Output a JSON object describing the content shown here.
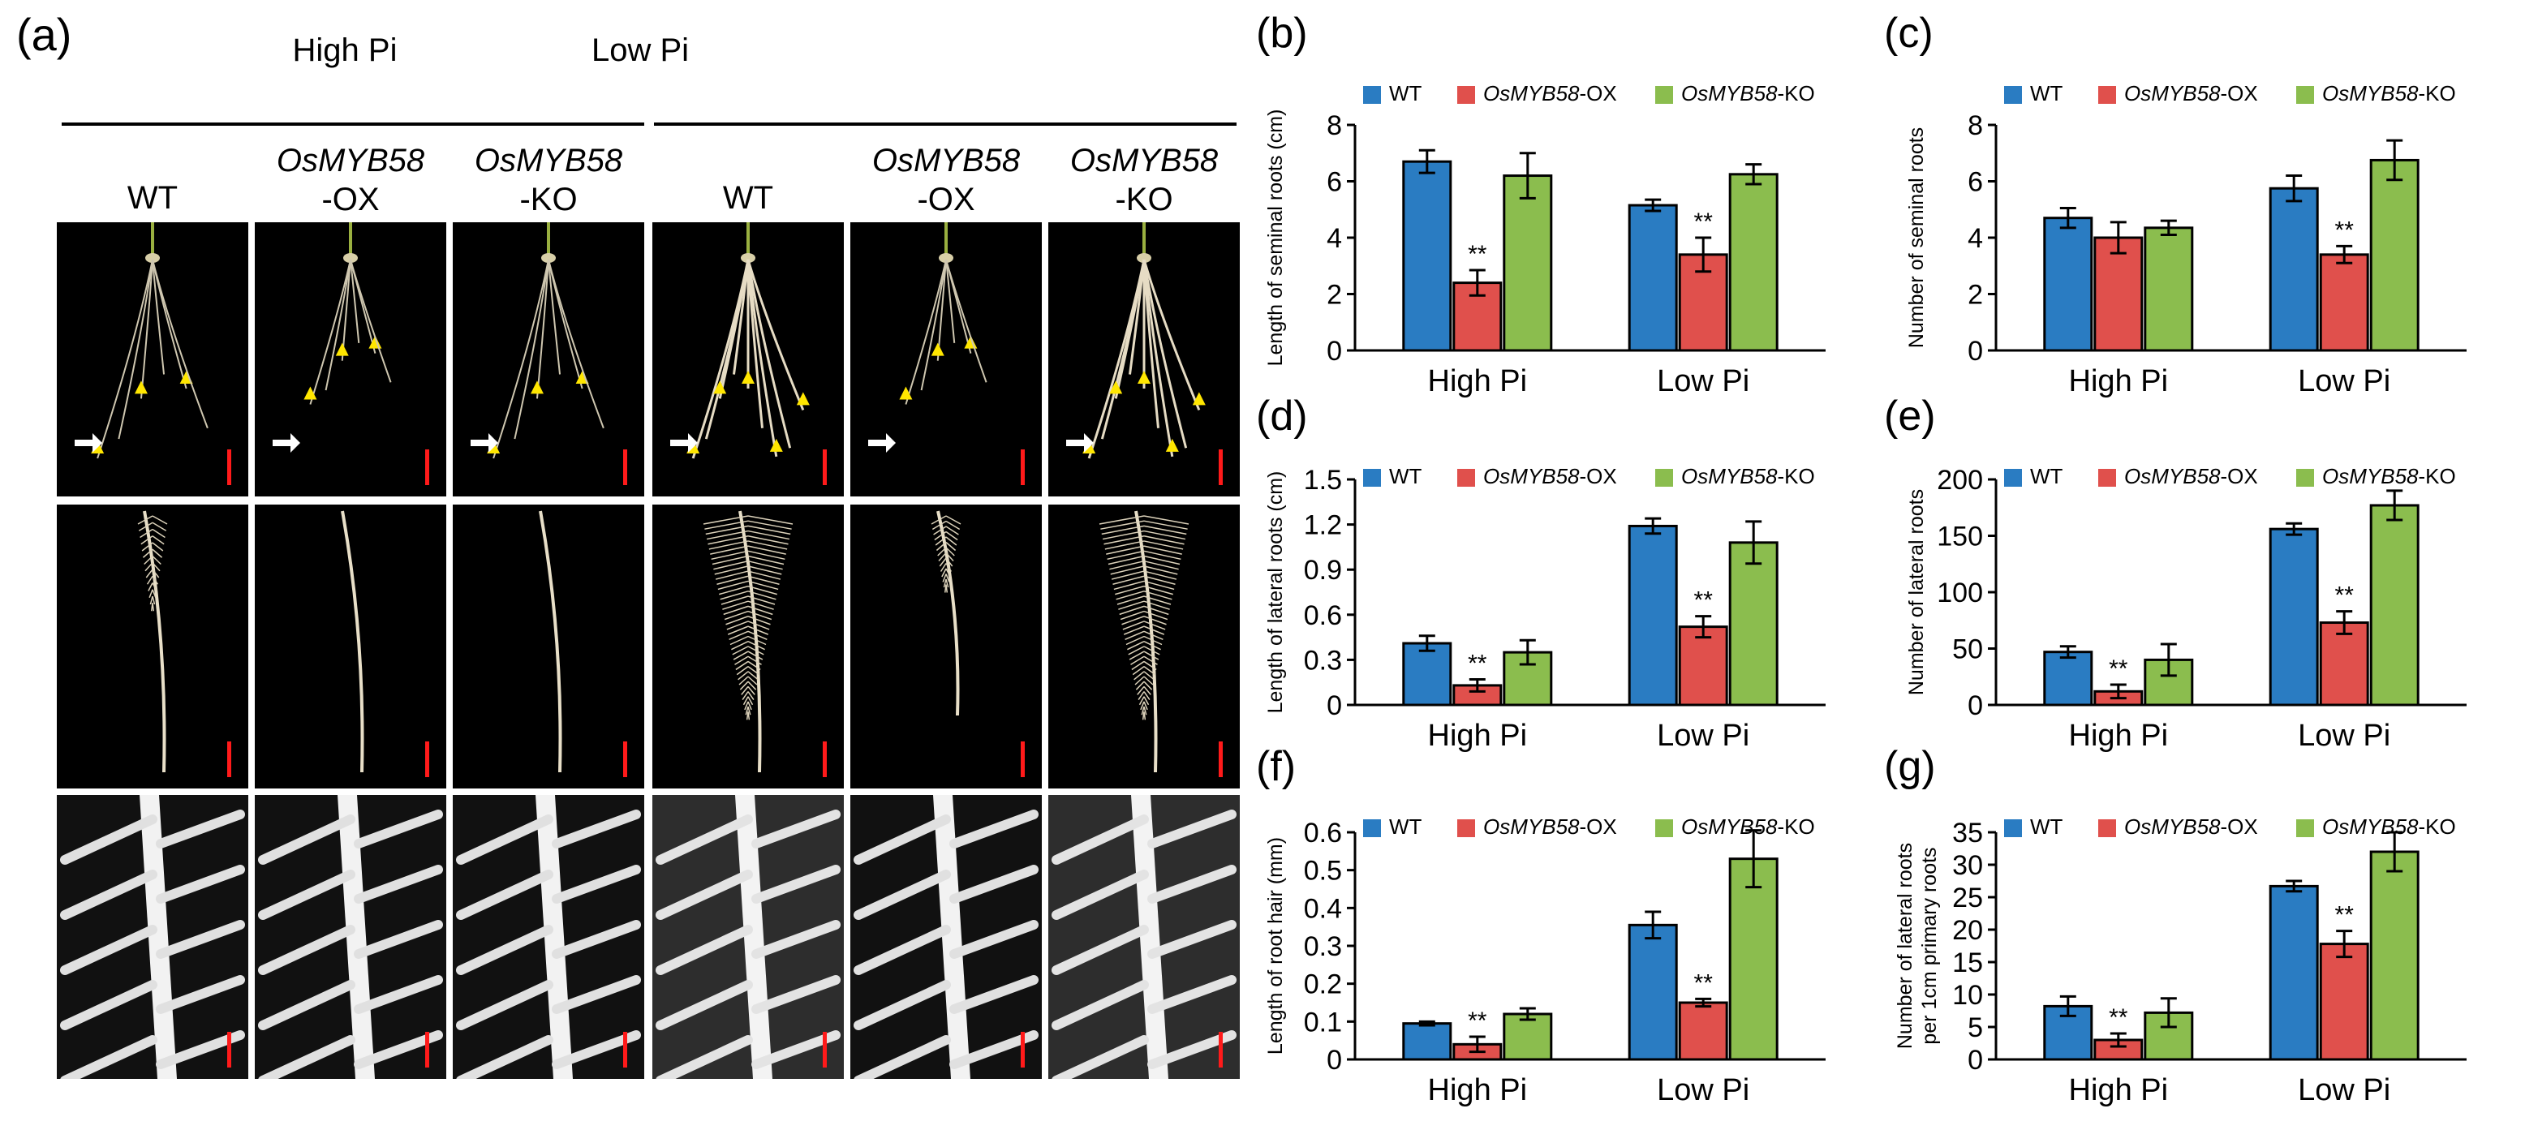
{
  "panel_a": {
    "letter": "(a)",
    "groups": [
      {
        "label": "High Pi",
        "genotypes": [
          "WT",
          "OsMYB58 -OX",
          "OsMYB58 -KO"
        ]
      },
      {
        "label": "Low Pi",
        "genotypes": [
          "WT",
          "OsMYB58 -OX",
          "OsMYB58 -KO"
        ]
      }
    ],
    "genotype_lines": {
      "wt": "WT",
      "gene": "OsMYB58",
      "ox_suffix": "-OX",
      "ko_suffix": "-KO"
    }
  },
  "colors": {
    "WT": "#2a7cc2",
    "OX": "#e0504c",
    "KO": "#8bbd4e"
  },
  "chart_data": [
    {
      "panel": "(b)",
      "type": "bar",
      "categories": [
        "High Pi",
        "Low Pi"
      ],
      "series": [
        {
          "name": "WT",
          "values": [
            6.7,
            5.15
          ],
          "errors": [
            0.4,
            0.2
          ]
        },
        {
          "name": "OsMYB58-OX",
          "values": [
            2.4,
            3.4
          ],
          "errors": [
            0.45,
            0.6
          ]
        },
        {
          "name": "OsMYB58-KO",
          "values": [
            6.2,
            6.25
          ],
          "errors": [
            0.8,
            0.35
          ]
        }
      ],
      "significance": [
        "**",
        "**"
      ],
      "ylabel": "Length of seminal roots (cm)",
      "ylim": [
        0,
        8
      ],
      "yticks": [
        "0",
        "2",
        "4",
        "6",
        "8"
      ]
    },
    {
      "panel": "(c)",
      "type": "bar",
      "categories": [
        "High Pi",
        "Low Pi"
      ],
      "series": [
        {
          "name": "WT",
          "values": [
            4.7,
            5.75
          ],
          "errors": [
            0.35,
            0.45
          ]
        },
        {
          "name": "OsMYB58-OX",
          "values": [
            4.0,
            3.4
          ],
          "errors": [
            0.55,
            0.3
          ]
        },
        {
          "name": "OsMYB58-KO",
          "values": [
            4.35,
            6.75
          ],
          "errors": [
            0.25,
            0.7
          ]
        }
      ],
      "significance": [
        "",
        "**"
      ],
      "ylabel": "Number of seminal roots",
      "ylim": [
        0,
        8
      ],
      "yticks": [
        "0",
        "2",
        "4",
        "6",
        "8"
      ]
    },
    {
      "panel": "(d)",
      "type": "bar",
      "categories": [
        "High Pi",
        "Low Pi"
      ],
      "series": [
        {
          "name": "WT",
          "values": [
            0.41,
            1.19
          ],
          "errors": [
            0.05,
            0.05
          ]
        },
        {
          "name": "OsMYB58-OX",
          "values": [
            0.13,
            0.52
          ],
          "errors": [
            0.04,
            0.07
          ]
        },
        {
          "name": "OsMYB58-KO",
          "values": [
            0.35,
            1.08
          ],
          "errors": [
            0.08,
            0.14
          ]
        }
      ],
      "significance": [
        "**",
        "**"
      ],
      "ylabel": "Length of lateral roots (cm)",
      "ylim": [
        0,
        1.5
      ],
      "yticks": [
        "0",
        "0.3",
        "0.6",
        "0.9",
        "1.2",
        "1.5"
      ]
    },
    {
      "panel": "(e)",
      "type": "bar",
      "categories": [
        "High Pi",
        "Low Pi"
      ],
      "series": [
        {
          "name": "WT",
          "values": [
            47,
            156
          ],
          "errors": [
            5,
            5
          ]
        },
        {
          "name": "OsMYB58-OX",
          "values": [
            12,
            73
          ],
          "errors": [
            6,
            10
          ]
        },
        {
          "name": "OsMYB58-KO",
          "values": [
            40,
            177
          ],
          "errors": [
            14,
            13
          ]
        }
      ],
      "significance": [
        "**",
        "**"
      ],
      "ylabel": "Number of lateral roots",
      "ylim": [
        0,
        200
      ],
      "yticks": [
        "0",
        "50",
        "100",
        "150",
        "200"
      ]
    },
    {
      "panel": "(f)",
      "type": "bar",
      "categories": [
        "High Pi",
        "Low Pi"
      ],
      "series": [
        {
          "name": "WT",
          "values": [
            0.095,
            0.355
          ],
          "errors": [
            0.005,
            0.035
          ]
        },
        {
          "name": "OsMYB58-OX",
          "values": [
            0.04,
            0.15
          ],
          "errors": [
            0.02,
            0.01
          ]
        },
        {
          "name": "OsMYB58-KO",
          "values": [
            0.12,
            0.53
          ],
          "errors": [
            0.015,
            0.075
          ]
        }
      ],
      "significance": [
        "**",
        "**"
      ],
      "ylabel": "Length of root hair (mm)",
      "ylim": [
        0,
        0.6
      ],
      "yticks": [
        "0",
        "0.1",
        "0.2",
        "0.3",
        "0.4",
        "0.5",
        "0.6"
      ]
    },
    {
      "panel": "(g)",
      "type": "bar",
      "categories": [
        "High Pi",
        "Low Pi"
      ],
      "series": [
        {
          "name": "WT",
          "values": [
            8.2,
            26.7
          ],
          "errors": [
            1.5,
            0.8
          ]
        },
        {
          "name": "OsMYB58-OX",
          "values": [
            3.0,
            17.8
          ],
          "errors": [
            1.0,
            2.0
          ]
        },
        {
          "name": "OsMYB58-KO",
          "values": [
            7.2,
            32.0
          ],
          "errors": [
            2.2,
            3.0
          ]
        }
      ],
      "significance": [
        "**",
        "**"
      ],
      "ylabel": "Number of lateral roots per 1cm primary roots",
      "ylabel_lines": [
        "Number of lateral roots",
        "per 1cm primary roots"
      ],
      "ylim": [
        0,
        35
      ],
      "yticks": [
        "0",
        "5",
        "10",
        "15",
        "20",
        "25",
        "30",
        "35"
      ]
    }
  ],
  "legend": {
    "wt": "WT",
    "gene": "OsMYB58",
    "ox_suffix": "-OX",
    "ko_suffix": "-KO"
  }
}
